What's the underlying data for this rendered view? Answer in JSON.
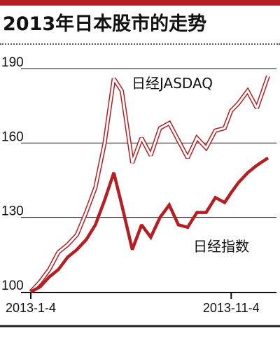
{
  "title": "2013年日本股市的走势",
  "colors": {
    "accent": "#b51f24",
    "grid": "#111111",
    "text": "#111111"
  },
  "chart_data": {
    "type": "line",
    "title": "2013年日本股市的走势",
    "ylim": [
      100,
      190
    ],
    "yticks": [
      "100",
      "130",
      "160",
      "190"
    ],
    "xticks": [
      "2013-1-4",
      "2013-11-4"
    ],
    "grid": true,
    "x": [
      "2013-01-04",
      "2013-01-18",
      "2013-02-01",
      "2013-02-15",
      "2013-03-01",
      "2013-03-15",
      "2013-03-29",
      "2013-04-12",
      "2013-04-26",
      "2013-05-10",
      "2013-05-22",
      "2013-06-07",
      "2013-06-21",
      "2013-07-05",
      "2013-07-19",
      "2013-08-02",
      "2013-08-16",
      "2013-08-30",
      "2013-09-13",
      "2013-09-27",
      "2013-10-11",
      "2013-10-25",
      "2013-11-04",
      "2013-11-15",
      "2013-11-29",
      "2013-12-13",
      "2013-12-30"
    ],
    "series": [
      {
        "name": "日经JASDAQ",
        "style": "outlined",
        "values": [
          100,
          104,
          109,
          116,
          119,
          123,
          132,
          142,
          160,
          186,
          181,
          152,
          162,
          155,
          166,
          168,
          161,
          154,
          162,
          158,
          165,
          166,
          173,
          176,
          181,
          174,
          187
        ]
      },
      {
        "name": "日经指数",
        "style": "solid",
        "values": [
          100,
          102,
          106,
          109,
          114,
          117,
          121,
          127,
          137,
          148,
          135,
          117,
          127,
          122,
          130,
          135,
          127,
          126,
          132,
          132,
          138,
          136,
          140,
          144,
          148,
          151,
          154
        ]
      }
    ]
  }
}
